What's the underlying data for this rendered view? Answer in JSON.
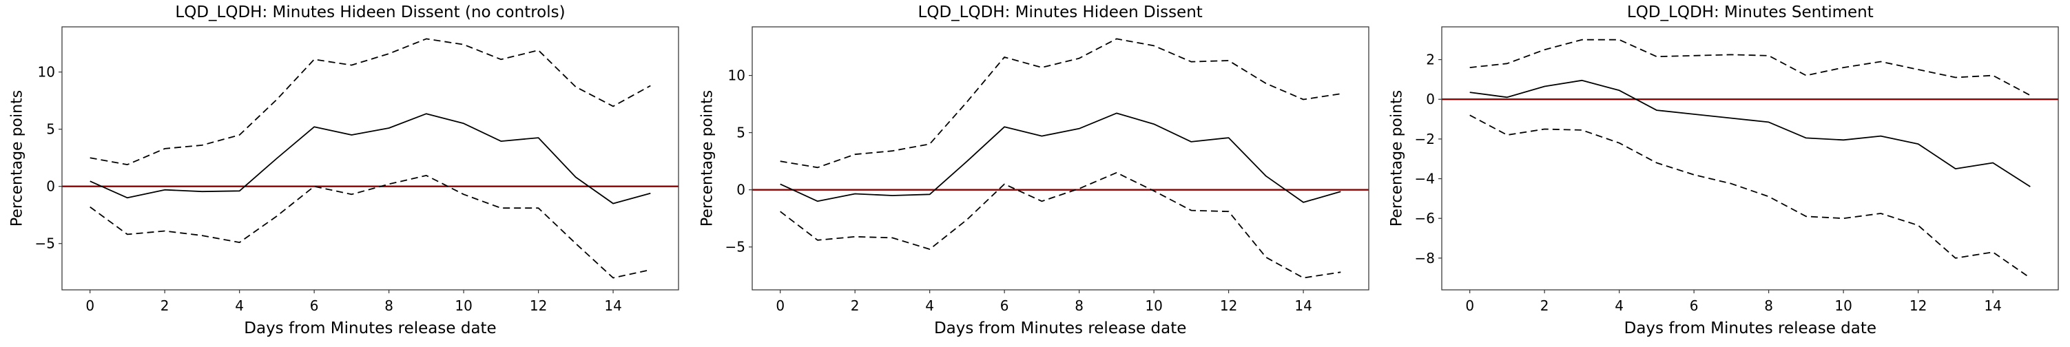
{
  "figure": {
    "background": "#ffffff",
    "shared_ylabel": "Percentage points",
    "shared_xlabel": "Days from Minutes release date"
  },
  "chart_data": [
    {
      "type": "line",
      "title": "LQD_LQDH: Minutes Hideen Dissent (no controls)",
      "xlabel": "Days from Minutes release date",
      "ylabel": "Percentage points",
      "x": [
        0,
        1,
        2,
        3,
        4,
        5,
        6,
        7,
        8,
        9,
        10,
        11,
        12,
        13,
        14,
        15
      ],
      "series": [
        {
          "name": "upper 95% CI",
          "style": "dashed",
          "color": "#000000",
          "values": [
            2.5,
            1.9,
            3.3,
            3.6,
            4.5,
            7.6,
            11.1,
            10.6,
            11.6,
            12.9,
            12.4,
            11.1,
            11.9,
            8.7,
            7.0,
            8.8
          ]
        },
        {
          "name": "point estimate",
          "style": "solid",
          "color": "#000000",
          "values": [
            0.45,
            -1.0,
            -0.3,
            -0.45,
            -0.4,
            2.45,
            5.2,
            4.5,
            5.1,
            6.35,
            5.5,
            3.95,
            4.25,
            0.8,
            -1.5,
            -0.6
          ]
        },
        {
          "name": "lower 95% CI",
          "style": "dashed",
          "color": "#000000",
          "values": [
            -1.8,
            -4.2,
            -3.9,
            -4.3,
            -4.9,
            -2.6,
            0.0,
            -0.7,
            0.2,
            0.95,
            -0.7,
            -1.9,
            -1.9,
            -5.0,
            -8.0,
            -7.3
          ]
        }
      ],
      "zero_line": {
        "y": 0,
        "color": "#8b0000"
      },
      "xlim": [
        -0.75,
        15.75
      ],
      "ylim": [
        -9.05,
        13.95
      ],
      "x_ticks": [
        0,
        2,
        4,
        6,
        8,
        10,
        12,
        14
      ],
      "y_ticks": [
        -5,
        0,
        5,
        10
      ],
      "grid": false,
      "legend": null
    },
    {
      "type": "line",
      "title": "LQD_LQDH: Minutes Hideen Dissent",
      "xlabel": "Days from Minutes release date",
      "ylabel": "Percentage points",
      "x": [
        0,
        1,
        2,
        3,
        4,
        5,
        6,
        7,
        8,
        9,
        10,
        11,
        12,
        13,
        14,
        15
      ],
      "series": [
        {
          "name": "upper 95% CI",
          "style": "dashed",
          "color": "#000000",
          "values": [
            2.5,
            1.95,
            3.1,
            3.4,
            4.0,
            7.7,
            11.6,
            10.7,
            11.5,
            13.2,
            12.6,
            11.2,
            11.3,
            9.3,
            7.9,
            8.4
          ]
        },
        {
          "name": "point estimate",
          "style": "solid",
          "color": "#000000",
          "values": [
            0.5,
            -1.0,
            -0.35,
            -0.5,
            -0.4,
            2.5,
            5.5,
            4.7,
            5.35,
            6.7,
            5.75,
            4.2,
            4.55,
            1.2,
            -1.1,
            -0.15
          ]
        },
        {
          "name": "lower 95% CI",
          "style": "dashed",
          "color": "#000000",
          "values": [
            -1.9,
            -4.4,
            -4.1,
            -4.2,
            -5.2,
            -2.6,
            0.5,
            -1.0,
            0.1,
            1.5,
            -0.1,
            -1.8,
            -1.9,
            -5.9,
            -7.7,
            -7.2
          ]
        }
      ],
      "zero_line": {
        "y": 0,
        "color": "#8b0000"
      },
      "xlim": [
        -0.75,
        15.75
      ],
      "ylim": [
        -8.75,
        14.25
      ],
      "x_ticks": [
        0,
        2,
        4,
        6,
        8,
        10,
        12,
        14
      ],
      "y_ticks": [
        -5,
        0,
        5,
        10
      ],
      "grid": false,
      "legend": null
    },
    {
      "type": "line",
      "title": "LQD_LQDH: Minutes Sentiment",
      "xlabel": "Days from Minutes release date",
      "ylabel": "Percentage points",
      "x": [
        0,
        1,
        2,
        3,
        4,
        5,
        6,
        7,
        8,
        9,
        10,
        11,
        12,
        13,
        14,
        15
      ],
      "series": [
        {
          "name": "upper 95% CI",
          "style": "dashed",
          "color": "#000000",
          "values": [
            1.6,
            1.8,
            2.5,
            3.0,
            3.0,
            2.15,
            2.2,
            2.25,
            2.2,
            1.2,
            1.6,
            1.9,
            1.5,
            1.1,
            1.2,
            0.2
          ]
        },
        {
          "name": "point estimate",
          "style": "solid",
          "color": "#000000",
          "values": [
            0.35,
            0.1,
            0.65,
            0.95,
            0.45,
            -0.55,
            -0.75,
            -0.95,
            -1.15,
            -1.95,
            -2.05,
            -1.85,
            -2.25,
            -3.5,
            -3.2,
            -4.4
          ]
        },
        {
          "name": "lower 95% CI",
          "style": "dashed",
          "color": "#000000",
          "values": [
            -0.8,
            -1.8,
            -1.5,
            -1.55,
            -2.2,
            -3.2,
            -3.8,
            -4.25,
            -4.9,
            -5.9,
            -6.0,
            -5.75,
            -6.35,
            -8.0,
            -7.7,
            -9.0
          ]
        }
      ],
      "zero_line": {
        "y": 0,
        "color": "#8b0000"
      },
      "xlim": [
        -0.75,
        15.75
      ],
      "ylim": [
        -9.6,
        3.65
      ],
      "x_ticks": [
        0,
        2,
        4,
        6,
        8,
        10,
        12,
        14
      ],
      "y_ticks": [
        2,
        0,
        -2,
        -4,
        -6,
        -8
      ],
      "grid": false,
      "legend": null
    }
  ]
}
